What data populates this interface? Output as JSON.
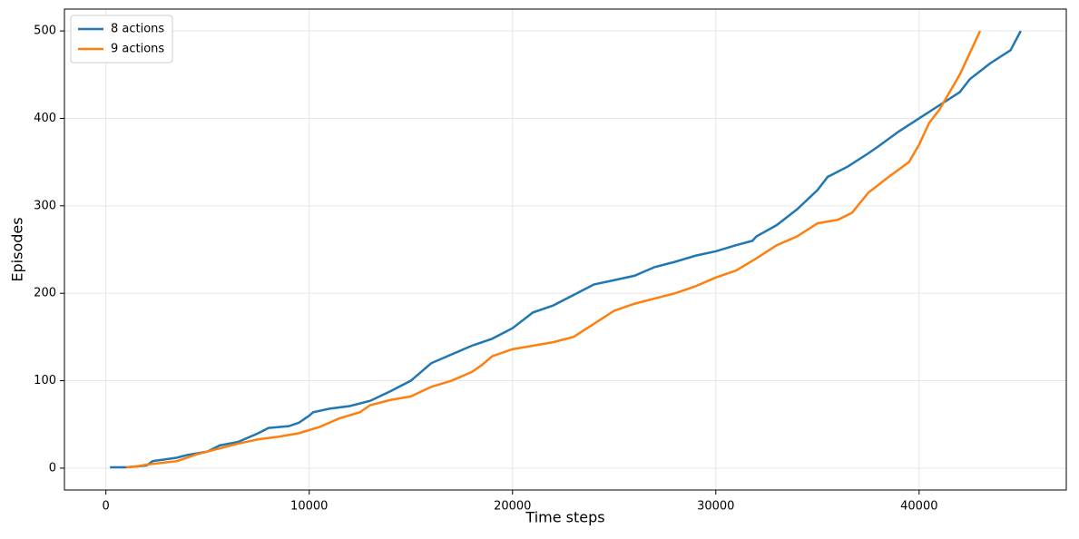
{
  "chart_data": {
    "type": "line",
    "xlabel": "Time steps",
    "ylabel": "Episodes",
    "xlim": [
      -2040,
      47240
    ],
    "ylim": [
      -25,
      525
    ],
    "xticks": [
      0,
      10000,
      20000,
      30000,
      40000
    ],
    "yticks": [
      0,
      100,
      200,
      300,
      400,
      500
    ],
    "grid": true,
    "legend": "upper left",
    "series": [
      {
        "name": "8 actions",
        "color": "#1f77b4",
        "x": [
          200,
          1000,
          2000,
          2300,
          3500,
          4000,
          5000,
          5600,
          6500,
          7500,
          8000,
          9000,
          9500,
          10000,
          10200,
          11000,
          12000,
          13000,
          14000,
          15000,
          16000,
          17000,
          18000,
          19000,
          20000,
          21000,
          22000,
          23000,
          24000,
          25000,
          26000,
          27000,
          28000,
          29000,
          30000,
          31000,
          31800,
          32000,
          33000,
          34000,
          35000,
          35500,
          36500,
          37500,
          38000,
          39000,
          40000,
          41000,
          42000,
          42500,
          43500,
          44500,
          45000
        ],
        "values": [
          1,
          1,
          3,
          8,
          12,
          15,
          19,
          26,
          30,
          40,
          46,
          48,
          52,
          60,
          64,
          68,
          71,
          77,
          88,
          100,
          120,
          130,
          140,
          148,
          160,
          178,
          186,
          198,
          210,
          215,
          220,
          230,
          236,
          243,
          248,
          255,
          260,
          265,
          278,
          296,
          318,
          333,
          345,
          360,
          368,
          385,
          400,
          415,
          430,
          445,
          463,
          478,
          500
        ]
      },
      {
        "name": "9 actions",
        "color": "#ff7f0e",
        "x": [
          1000,
          1500,
          2000,
          3500,
          4500,
          5500,
          6500,
          7500,
          8500,
          9500,
          10500,
          11500,
          12500,
          13000,
          14000,
          15000,
          16000,
          17000,
          18000,
          18500,
          19000,
          20000,
          21000,
          22000,
          23000,
          24000,
          25000,
          26000,
          27000,
          28000,
          29000,
          30000,
          31000,
          32000,
          33000,
          34000,
          35000,
          36000,
          36700,
          37500,
          38500,
          39500,
          40000,
          40500,
          41000,
          41500,
          42000,
          42500,
          43000
        ],
        "values": [
          1,
          2,
          4,
          8,
          16,
          22,
          28,
          33,
          36,
          40,
          47,
          57,
          64,
          72,
          78,
          82,
          93,
          100,
          110,
          118,
          128,
          136,
          140,
          144,
          150,
          165,
          180,
          188,
          194,
          200,
          208,
          218,
          226,
          240,
          255,
          265,
          280,
          284,
          292,
          315,
          333,
          350,
          370,
          395,
          410,
          430,
          450,
          475,
          500
        ]
      }
    ]
  }
}
